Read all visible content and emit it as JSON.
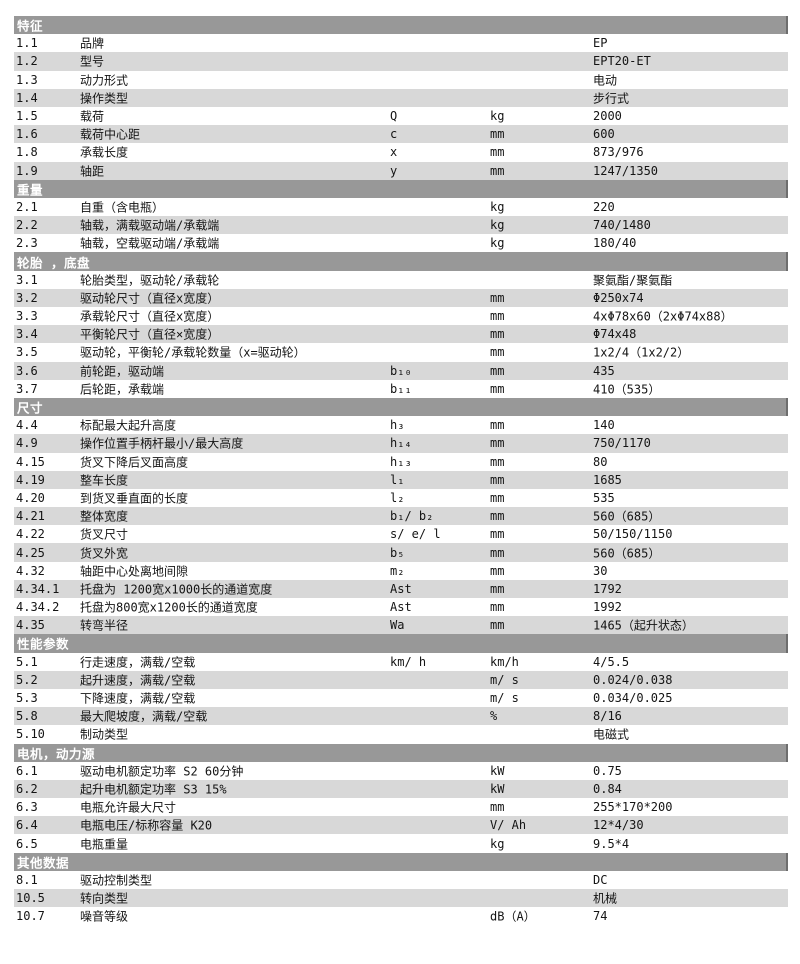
{
  "table": {
    "columns": [
      "index",
      "description",
      "symbol",
      "unit",
      "value"
    ],
    "colors": {
      "section_header_bg": "#989898",
      "section_header_text": "#ffffff",
      "stripe_bg": "#d8d8d8",
      "row_bg": "#ffffff",
      "text": "#141414"
    }
  },
  "sections": [
    {
      "title": "特征",
      "rows": [
        {
          "no": "1.1",
          "desc": "品牌",
          "sym": "",
          "unit": "",
          "val": "EP"
        },
        {
          "no": "1.2",
          "desc": "型号",
          "sym": "",
          "unit": "",
          "val": "EPT20-ET"
        },
        {
          "no": "1.3",
          "desc": "动力形式",
          "sym": "",
          "unit": "",
          "val": "电动"
        },
        {
          "no": "1.4",
          "desc": "操作类型",
          "sym": "",
          "unit": "",
          "val": "步行式"
        },
        {
          "no": "1.5",
          "desc": "载荷",
          "sym": "Q",
          "unit": "kg",
          "val": "2000"
        },
        {
          "no": "1.6",
          "desc": "载荷中心距",
          "sym": "c",
          "unit": "mm",
          "val": "600"
        },
        {
          "no": "1.8",
          "desc": "承载长度",
          "sym": "x",
          "unit": "mm",
          "val": "873/976"
        },
        {
          "no": "1.9",
          "desc": "轴距",
          "sym": "y",
          "unit": "mm",
          "val": "1247/1350"
        }
      ]
    },
    {
      "title": "重量",
      "rows": [
        {
          "no": "2.1",
          "desc": "自重（含电瓶）",
          "sym": "",
          "unit": "kg",
          "val": "220"
        },
        {
          "no": "2.2",
          "desc": "轴载，满载驱动端/承载端",
          "sym": "",
          "unit": "kg",
          "val": "740/1480"
        },
        {
          "no": "2.3",
          "desc": "轴载，空载驱动端/承载端",
          "sym": "",
          "unit": "kg",
          "val": "180/40"
        }
      ]
    },
    {
      "title": "轮胎 ，底盘",
      "rows": [
        {
          "no": "3.1",
          "desc": "轮胎类型，驱动轮/承载轮",
          "sym": "",
          "unit": "",
          "val": "聚氨酯/聚氨酯"
        },
        {
          "no": "3.2",
          "desc": "驱动轮尺寸（直径x宽度）",
          "sym": "",
          "unit": "mm",
          "val": "Φ250x74"
        },
        {
          "no": "3.3",
          "desc": "承载轮尺寸（直径x宽度）",
          "sym": "",
          "unit": "mm",
          "val": "4xΦ78x60（2xΦ74x88）"
        },
        {
          "no": "3.4",
          "desc": "平衡轮尺寸（直径×宽度）",
          "sym": "",
          "unit": "mm",
          "val": "Φ74x48"
        },
        {
          "no": "3.5",
          "desc": "驱动轮，平衡轮/承载轮数量（x=驱动轮）",
          "sym": "",
          "unit": "mm",
          "val": "1x2/4（1x2/2）"
        },
        {
          "no": "3.6",
          "desc": "前轮距，驱动端",
          "sym": "b₁₀",
          "unit": "mm",
          "val": "435"
        },
        {
          "no": "3.7",
          "desc": "后轮距，承载端",
          "sym": "b₁₁",
          "unit": "mm",
          "val": "410（535）"
        }
      ]
    },
    {
      "title": "尺寸",
      "rows": [
        {
          "no": "4.4",
          "desc": "标配最大起升高度",
          "sym": "h₃",
          "unit": "mm",
          "val": "140"
        },
        {
          "no": "4.9",
          "desc": "操作位置手柄杆最小/最大高度",
          "sym": "h₁₄",
          "unit": "mm",
          "val": "750/1170"
        },
        {
          "no": "4.15",
          "desc": "货叉下降后叉面高度",
          "sym": "h₁₃",
          "unit": "mm",
          "val": "80"
        },
        {
          "no": "4.19",
          "desc": "整车长度",
          "sym": "l₁",
          "unit": "mm",
          "val": "1685"
        },
        {
          "no": "4.20",
          "desc": "到货叉垂直面的长度",
          "sym": "l₂",
          "unit": "mm",
          "val": "535"
        },
        {
          "no": "4.21",
          "desc": "整体宽度",
          "sym": "b₁/ b₂",
          "unit": "mm",
          "val": "560（685）"
        },
        {
          "no": "4.22",
          "desc": "货叉尺寸",
          "sym": "s/ e/ l",
          "unit": "mm",
          "val": "50/150/1150"
        },
        {
          "no": "4.25",
          "desc": "货叉外宽",
          "sym": "b₅",
          "unit": "mm",
          "val": "560（685）"
        },
        {
          "no": "4.32",
          "desc": "轴距中心处离地间隙",
          "sym": "m₂",
          "unit": "mm",
          "val": "30"
        },
        {
          "no": "4.34.1",
          "desc": "托盘为 1200宽x1000长的通道宽度",
          "sym": "Ast",
          "unit": "mm",
          "val": "1792"
        },
        {
          "no": "4.34.2",
          "desc": "托盘为800宽x1200长的通道宽度",
          "sym": "Ast",
          "unit": "mm",
          "val": "1992"
        },
        {
          "no": "4.35",
          "desc": "转弯半径",
          "sym": "Wa",
          "unit": "mm",
          "val": "1465（起升状态）"
        }
      ]
    },
    {
      "title": "性能参数",
      "rows": [
        {
          "no": "5.1",
          "desc": "行走速度，满载/空载",
          "sym": "km/ h",
          "unit": "km/h",
          "val": "4/5.5"
        },
        {
          "no": "5.2",
          "desc": "起升速度，满载/空载",
          "sym": "",
          "unit": "m/ s",
          "val": "0.024/0.038"
        },
        {
          "no": "5.3",
          "desc": "下降速度，满载/空载",
          "sym": "",
          "unit": "m/ s",
          "val": "0.034/0.025"
        },
        {
          "no": "5.8",
          "desc": "最大爬坡度，满载/空载",
          "sym": "",
          "unit": "%",
          "val": "8/16"
        },
        {
          "no": "5.10",
          "desc": "制动类型",
          "sym": "",
          "unit": "",
          "val": "电磁式"
        }
      ]
    },
    {
      "title": "电机，动力源",
      "rows": [
        {
          "no": "6.1",
          "desc": "驱动电机额定功率 S2 60分钟",
          "sym": "",
          "unit": "kW",
          "val": "0.75"
        },
        {
          "no": "6.2",
          "desc": "起升电机额定功率 S3 15%",
          "sym": "",
          "unit": "kW",
          "val": "0.84"
        },
        {
          "no": "6.3",
          "desc": "电瓶允许最大尺寸",
          "sym": "",
          "unit": "mm",
          "val": "255*170*200"
        },
        {
          "no": "6.4",
          "desc": "电瓶电压/标称容量 K20",
          "sym": "",
          "unit": "V/ Ah",
          "val": "12*4/30"
        },
        {
          "no": "6.5",
          "desc": "电瓶重量",
          "sym": "",
          "unit": "kg",
          "val": "9.5*4"
        }
      ]
    },
    {
      "title": "其他数据",
      "rows": [
        {
          "no": "8.1",
          "desc": "驱动控制类型",
          "sym": "",
          "unit": "",
          "val": "DC"
        },
        {
          "no": "10.5",
          "desc": "转向类型",
          "sym": "",
          "unit": "",
          "val": "机械"
        },
        {
          "no": "10.7",
          "desc": "噪音等级",
          "sym": "",
          "unit": "dB（A）",
          "val": "74"
        }
      ]
    }
  ]
}
